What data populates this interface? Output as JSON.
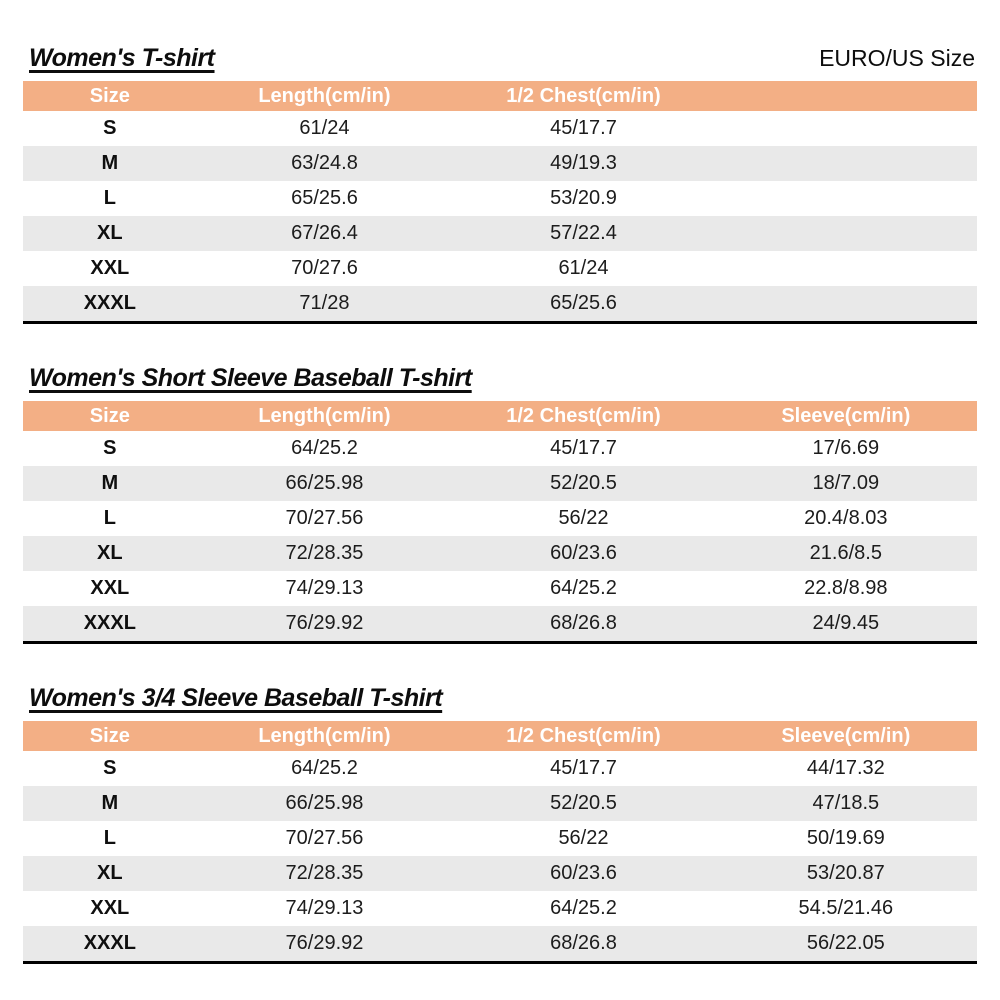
{
  "header": {
    "size_standard_label": "EURO/US Size"
  },
  "colors": {
    "table_header_bg": "#F3AF85",
    "table_header_text": "#FFFFFF",
    "row_alt_bg": "#E9E9E9",
    "table_bottom_border": "#000000"
  },
  "tables": [
    {
      "title": "Women's T-shirt",
      "columns": [
        "Size",
        "Length(cm/in)",
        "1/2 Chest(cm/in)",
        ""
      ],
      "rows": [
        [
          "S",
          "61/24",
          "45/17.7",
          ""
        ],
        [
          "M",
          "63/24.8",
          "49/19.3",
          ""
        ],
        [
          "L",
          "65/25.6",
          "53/20.9",
          ""
        ],
        [
          "XL",
          "67/26.4",
          "57/22.4",
          ""
        ],
        [
          "XXL",
          "70/27.6",
          "61/24",
          ""
        ],
        [
          "XXXL",
          "71/28",
          "65/25.6",
          ""
        ]
      ]
    },
    {
      "title": "Women's Short Sleeve Baseball T-shirt",
      "columns": [
        "Size",
        "Length(cm/in)",
        "1/2 Chest(cm/in)",
        "Sleeve(cm/in)"
      ],
      "rows": [
        [
          "S",
          "64/25.2",
          "45/17.7",
          "17/6.69"
        ],
        [
          "M",
          "66/25.98",
          "52/20.5",
          "18/7.09"
        ],
        [
          "L",
          "70/27.56",
          "56/22",
          "20.4/8.03"
        ],
        [
          "XL",
          "72/28.35",
          "60/23.6",
          "21.6/8.5"
        ],
        [
          "XXL",
          "74/29.13",
          "64/25.2",
          "22.8/8.98"
        ],
        [
          "XXXL",
          "76/29.92",
          "68/26.8",
          "24/9.45"
        ]
      ]
    },
    {
      "title": "Women's 3/4 Sleeve Baseball T-shirt",
      "columns": [
        "Size",
        "Length(cm/in)",
        "1/2 Chest(cm/in)",
        "Sleeve(cm/in)"
      ],
      "rows": [
        [
          "S",
          "64/25.2",
          "45/17.7",
          "44/17.32"
        ],
        [
          "M",
          "66/25.98",
          "52/20.5",
          "47/18.5"
        ],
        [
          "L",
          "70/27.56",
          "56/22",
          "50/19.69"
        ],
        [
          "XL",
          "72/28.35",
          "60/23.6",
          "53/20.87"
        ],
        [
          "XXL",
          "74/29.13",
          "64/25.2",
          "54.5/21.46"
        ],
        [
          "XXXL",
          "76/29.92",
          "68/26.8",
          "56/22.05"
        ]
      ]
    }
  ]
}
